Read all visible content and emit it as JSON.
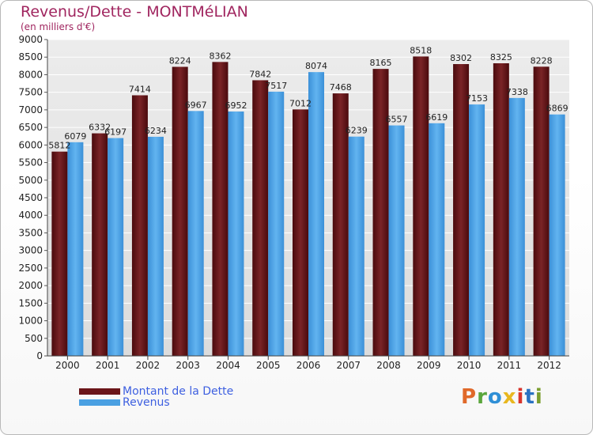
{
  "title": "Revenus/Dette - MONTMéLIAN",
  "subtitle": "(en milliers d'€)",
  "brand": {
    "text": "Proxiti",
    "colors": [
      "#e0692a",
      "#5aa63c",
      "#2f8fd6",
      "#e8b71f",
      "#d8342c",
      "#2a72c2",
      "#7b9e2f"
    ]
  },
  "chart_data": {
    "type": "bar",
    "categories": [
      "2000",
      "2001",
      "2002",
      "2003",
      "2004",
      "2005",
      "2006",
      "2007",
      "2008",
      "2009",
      "2010",
      "2011",
      "2012"
    ],
    "series": [
      {
        "name": "Montant de la Dette",
        "color": "#6b1519",
        "values": [
          5812,
          6332,
          7414,
          8224,
          8362,
          7842,
          7012,
          7468,
          8165,
          8518,
          8302,
          8325,
          8228
        ]
      },
      {
        "name": "Revenus",
        "color": "#4aa0e2",
        "values": [
          6079,
          6197,
          6234,
          6967,
          6952,
          7517,
          8074,
          6239,
          6557,
          6619,
          7153,
          7338,
          6869
        ]
      }
    ],
    "ylim": [
      0,
      9000
    ],
    "yticks": [
      0,
      500,
      1000,
      1500,
      2000,
      2500,
      3000,
      3500,
      4000,
      4500,
      5000,
      5500,
      6000,
      6500,
      7000,
      7500,
      8000,
      8500,
      9000
    ],
    "grid": true,
    "legend": "bottom-left"
  }
}
